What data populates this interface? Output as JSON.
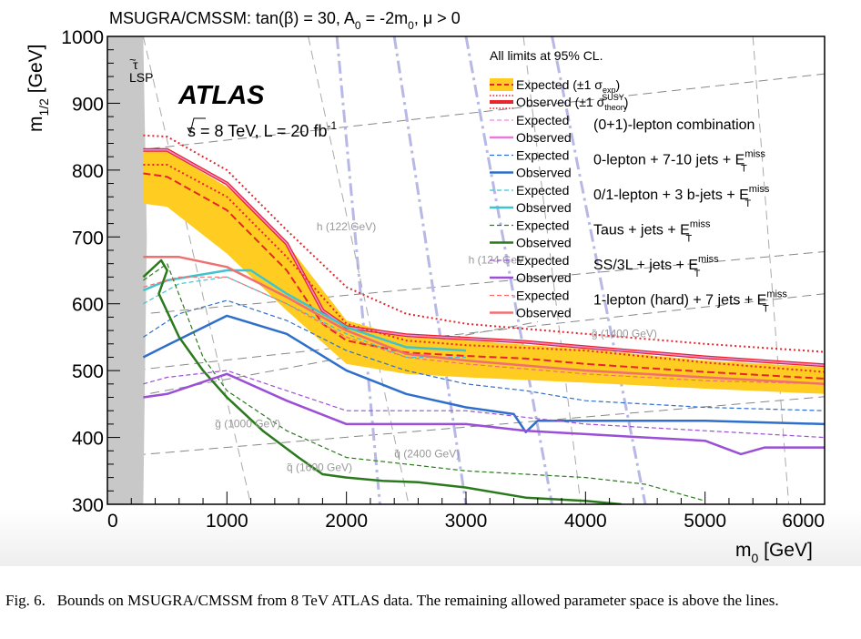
{
  "caption": {
    "label": "Fig. 6.",
    "text": "Bounds on MSUGRA/CMSSM from 8 TeV ATLAS data. The remaining allowed parameter space is above the lines."
  },
  "chart_data": {
    "type": "line",
    "title": "MSUGRA/CMSSM: tan(β) = 30, A0 = -2m0, μ > 0",
    "xlabel": "m0 [GeV]",
    "ylabel": "m1/2 [GeV]",
    "xlim": [
      0,
      6000
    ],
    "ylim": [
      300,
      1000
    ],
    "x_ticks": [
      0,
      1000,
      2000,
      3000,
      4000,
      5000,
      6000
    ],
    "y_ticks": [
      300,
      400,
      500,
      600,
      700,
      800,
      900,
      1000
    ],
    "annotations": {
      "experiment": "ATLAS",
      "energy": "s = 8 TeV,  L = 20 fb",
      "energy_sup": "-1",
      "cl_note": "All limits at 95% CL.",
      "lsp_label": "τ̃ LSP",
      "lsp_region_upto_m0": [
        [
          300,
          1000
        ],
        [
          330,
          700
        ],
        [
          300,
          300
        ]
      ]
    },
    "contour_labels": [
      {
        "text": "g̃ (1000 GeV)",
        "x": 900,
        "y": 415
      },
      {
        "text": "g̃ (1400 GeV)",
        "x": 4050,
        "y": 550
      },
      {
        "text": "q̃ (1600 GeV)",
        "x": 1500,
        "y": 350
      },
      {
        "text": "q̃ (2400 GeV)",
        "x": 2400,
        "y": 370
      },
      {
        "text": "h (122 GeV)",
        "x": 1750,
        "y": 710
      },
      {
        "text": "h (124 GeV)",
        "x": 3020,
        "y": 660
      }
    ],
    "legend": [
      {
        "label": "Expected (±1 σexp)",
        "color": "#e8242c",
        "style": "band-dashed"
      },
      {
        "label": "Observed (±1 σtheory SUSY)",
        "color": "#e8242c",
        "style": "thick-dotted"
      },
      {
        "group": "(0+1)-lepton combination",
        "expected_color": "#f08bd8",
        "observed_color": "#e879d6"
      },
      {
        "group": "0-lepton + 7-10 jets + E_T^miss",
        "expected_color": "#2f6fcc",
        "observed_color": "#2f6fcc"
      },
      {
        "group": "0/1-lepton + 3 b-jets + E_T^miss",
        "expected_color": "#3ec4cf",
        "observed_color": "#3ec4cf"
      },
      {
        "group": "Taus + jets + E_T^miss",
        "expected_color": "#2a7a1c",
        "observed_color": "#2a7a1c"
      },
      {
        "group": "SS/3L + jets + E_T^miss",
        "expected_color": "#9a4fd6",
        "observed_color": "#9a4fd6"
      },
      {
        "group": "1-lepton (hard) + 7 jets + E_T^miss",
        "expected_color": "#f07070",
        "observed_color": "#f07070"
      }
    ],
    "legend_texts": {
      "expected_exp": "Expected (±1 σ",
      "observed_theory": "Observed (±1 σ",
      "expected": "Expected",
      "observed": "Observed",
      "g1": "(0+1)-lepton combination",
      "g2": "0-lepton + 7-10 jets + E",
      "g3": "0/1-lepton + 3 b-jets + E",
      "g4": "Taus + jets + E",
      "g5": "SS/3L + jets + E",
      "g6": "1-lepton (hard) + 7 jets + E",
      "miss": "miss",
      "T": "T"
    },
    "series": [
      {
        "name": "Combination expected band low (-1σ)",
        "color": "#ffcc22",
        "x": [
          300,
          500,
          1000,
          1500,
          2000,
          2500,
          3000,
          4000,
          5000,
          6000
        ],
        "y": [
          750,
          745,
          675,
          590,
          510,
          495,
          490,
          482,
          473,
          465
        ]
      },
      {
        "name": "Combination expected band high (+1σ)",
        "color": "#ffcc22",
        "x": [
          300,
          500,
          1000,
          1500,
          2000,
          2500,
          3000,
          4000,
          5000,
          6000
        ],
        "y": [
          830,
          828,
          775,
          690,
          575,
          550,
          545,
          532,
          515,
          505
        ]
      },
      {
        "name": "Combination expected",
        "color": "#e8242c",
        "x": [
          300,
          500,
          1000,
          1500,
          1800,
          2000,
          2500,
          3000,
          3500,
          4000,
          5000,
          6000
        ],
        "y": [
          795,
          790,
          740,
          650,
          570,
          545,
          527,
          522,
          518,
          510,
          498,
          488
        ]
      },
      {
        "name": "Combination observed",
        "color": "#e8242c",
        "x": [
          300,
          500,
          1000,
          1500,
          1800,
          2000,
          2500,
          3000,
          3500,
          4000,
          5000,
          6000
        ],
        "y": [
          830,
          830,
          780,
          690,
          590,
          565,
          553,
          548,
          543,
          535,
          520,
          508
        ]
      },
      {
        "name": "Combination observed +1σ theory",
        "color": "#e8242c",
        "x": [
          300,
          500,
          1000,
          1500,
          2000,
          2500,
          3000,
          4000,
          5000,
          6000
        ],
        "y": [
          852,
          850,
          800,
          710,
          625,
          585,
          570,
          555,
          540,
          528
        ]
      },
      {
        "name": "Combination observed -1σ theory",
        "color": "#e8242c",
        "x": [
          300,
          500,
          1000,
          1500,
          2000,
          2500,
          3000,
          4000,
          5000,
          6000
        ],
        "y": [
          808,
          808,
          760,
          670,
          570,
          545,
          538,
          530,
          512,
          498
        ]
      },
      {
        "name": "0-lepton + 7-10 jets expected",
        "color": "#2f6fcc",
        "x": [
          300,
          600,
          1000,
          1500,
          2000,
          2500,
          3000,
          3500,
          4000,
          5000,
          6000
        ],
        "y": [
          550,
          585,
          605,
          575,
          530,
          500,
          480,
          470,
          455,
          445,
          440
        ]
      },
      {
        "name": "0-lepton + 7-10 jets observed",
        "color": "#2f6fcc",
        "x": [
          300,
          500,
          1000,
          1500,
          2000,
          2500,
          3000,
          3400,
          3500,
          3600,
          4000,
          5000,
          6000
        ],
        "y": [
          520,
          538,
          582,
          555,
          500,
          465,
          445,
          435,
          408,
          425,
          425,
          425,
          420
        ]
      },
      {
        "name": "0/1-lepton + 3 b-jets expected",
        "color": "#3ec4cf",
        "x": [
          300,
          600,
          1000,
          1500,
          2000,
          2500,
          3000
        ],
        "y": [
          600,
          630,
          640,
          600,
          555,
          520,
          520
        ]
      },
      {
        "name": "0/1-lepton + 3 b-jets observed",
        "color": "#3ec4cf",
        "x": [
          300,
          500,
          1000,
          1200,
          1500,
          2000,
          2500,
          3000
        ],
        "y": [
          620,
          635,
          650,
          650,
          615,
          565,
          535,
          530
        ]
      },
      {
        "name": "Taus + jets expected",
        "color": "#2a7a1c",
        "x": [
          300,
          500,
          800,
          1000,
          1500,
          2000,
          2500,
          3000,
          3500,
          4000,
          4500,
          5000
        ],
        "y": [
          635,
          660,
          520,
          470,
          410,
          370,
          360,
          350,
          345,
          340,
          330,
          305
        ]
      },
      {
        "name": "Taus + jets observed",
        "color": "#2a7a1c",
        "x": [
          300,
          450,
          500,
          430,
          600,
          800,
          1000,
          1300,
          1600,
          1800,
          2000,
          2300,
          2600,
          3000,
          3500,
          4000,
          4300
        ],
        "y": [
          640,
          665,
          650,
          615,
          550,
          500,
          460,
          410,
          370,
          345,
          340,
          335,
          333,
          325,
          310,
          305,
          300
        ]
      },
      {
        "name": "SS/3L + jets expected",
        "color": "#9a4fd6",
        "x": [
          300,
          500,
          1000,
          1500,
          2000,
          2500,
          3000,
          3500,
          4000,
          5000,
          6000
        ],
        "y": [
          480,
          490,
          500,
          470,
          440,
          440,
          440,
          430,
          420,
          410,
          400
        ]
      },
      {
        "name": "SS/3L + jets observed",
        "color": "#9a4fd6",
        "x": [
          300,
          500,
          1000,
          1500,
          2000,
          2500,
          3000,
          3500,
          4000,
          4500,
          5000,
          5300,
          5500,
          6000
        ],
        "y": [
          460,
          465,
          495,
          455,
          420,
          420,
          420,
          410,
          405,
          400,
          395,
          375,
          385,
          385
        ]
      },
      {
        "name": "1-lepton (hard) + 7 jets expected",
        "color": "#f07070",
        "x": [
          300,
          600,
          1000,
          1500,
          2000,
          2500,
          3000,
          4000,
          5000,
          6000
        ],
        "y": [
          625,
          640,
          640,
          600,
          550,
          520,
          510,
          495,
          485,
          480
        ]
      },
      {
        "name": "1-lepton (hard) + 7 jets observed",
        "color": "#f07070",
        "x": [
          300,
          600,
          1000,
          1500,
          2000,
          2500,
          3000,
          4000,
          5000,
          6000
        ],
        "y": [
          670,
          670,
          655,
          610,
          560,
          525,
          515,
          500,
          490,
          480
        ]
      }
    ],
    "grid": false,
    "legend_position": "top-right"
  }
}
